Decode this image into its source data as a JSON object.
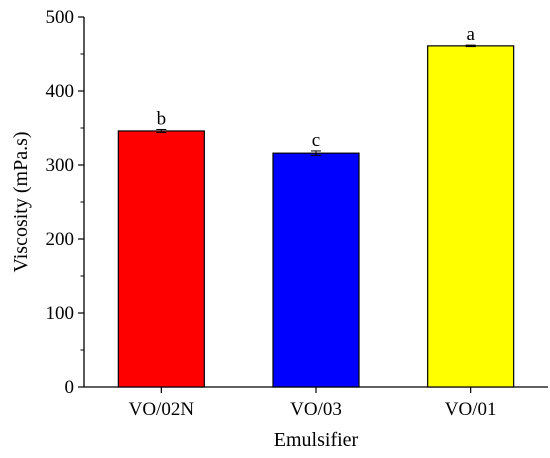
{
  "chart_data": {
    "type": "bar",
    "title": "",
    "xlabel": "Emulsifier",
    "ylabel": "Viscosity (mPa.s)",
    "ylim": [
      0,
      500
    ],
    "yticks": [
      "0",
      "100",
      "200",
      "300",
      "400",
      "500"
    ],
    "categories": [
      "VO/02N",
      "VO/03",
      "VO/01"
    ],
    "values": [
      346,
      316,
      461
    ],
    "errors": [
      2,
      3,
      1
    ],
    "significance": [
      "b",
      "c",
      "a"
    ],
    "colors": [
      "#ff0000",
      "#0000ff",
      "#ffff00"
    ],
    "grid": false,
    "legend": "none"
  }
}
